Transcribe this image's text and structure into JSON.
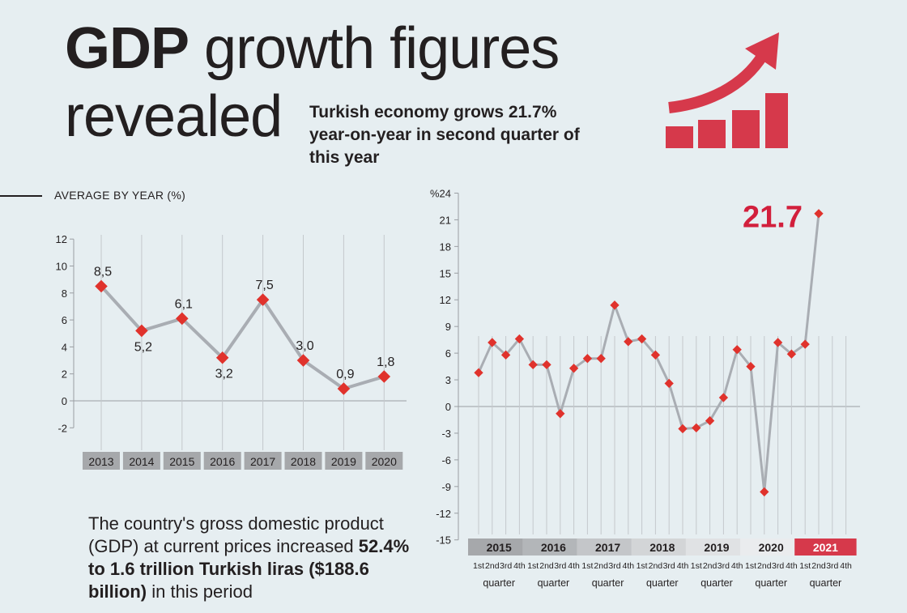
{
  "header": {
    "title_bold": "GDP",
    "title_rest": "growth figures",
    "title_line2": "revealed",
    "subtitle": "Turkish economy grows 21.7% year-on-year in second quarter of this year"
  },
  "icon": {
    "name": "growth-chart-arrow-icon",
    "color": "#d6394b"
  },
  "colors": {
    "line": "#a9adb3",
    "marker": "#e0322c",
    "highlight": "#d21f3c",
    "text": "#231f20",
    "year_box": "#a6a8ab"
  },
  "section_label": "AVERAGE BY YEAR (%)",
  "body": {
    "text_before": "The country's gross domestic product (GDP) at current prices increased",
    "text_bold": "52.4% to 1.6 trillion Turkish liras ($188.6 billion)",
    "text_after": "in this period"
  },
  "chart_data": [
    {
      "type": "line",
      "title": "AVERAGE BY YEAR (%)",
      "categories": [
        "2013",
        "2014",
        "2015",
        "2016",
        "2017",
        "2018",
        "2019",
        "2020"
      ],
      "values": [
        8.5,
        5.2,
        6.1,
        3.2,
        7.5,
        3.0,
        0.9,
        1.8
      ],
      "data_labels": [
        "8,5",
        "5,2",
        "6,1",
        "3,2",
        "7,5",
        "3,0",
        "0,9",
        "1,8"
      ],
      "y_ticks": [
        "12",
        "10",
        "8",
        "6",
        "4",
        "2",
        "0",
        "-2"
      ],
      "ylim": [
        -2,
        12
      ],
      "grid": "vertical"
    },
    {
      "type": "line",
      "y_unit": "%",
      "years": [
        "2015",
        "2016",
        "2017",
        "2018",
        "2019",
        "2020",
        "2021"
      ],
      "quarter_labels": [
        "1st",
        "2nd",
        "3rd",
        "4th"
      ],
      "quarter_word": "quarter",
      "values": [
        3.8,
        7.2,
        5.8,
        7.6,
        4.7,
        4.7,
        -0.8,
        4.3,
        5.4,
        5.4,
        11.4,
        7.3,
        7.6,
        5.8,
        2.6,
        -2.5,
        -2.4,
        -1.6,
        1.0,
        6.4,
        4.5,
        -9.6,
        7.2,
        5.9,
        7.0,
        21.7
      ],
      "y_ticks": [
        "24",
        "21",
        "18",
        "15",
        "12",
        "9",
        "6",
        "3",
        "0",
        "-3",
        "-6",
        "-9",
        "-12",
        "-15"
      ],
      "ylim": [
        -15,
        24
      ],
      "highlight_label": "21.7",
      "grid": "vertical"
    }
  ]
}
